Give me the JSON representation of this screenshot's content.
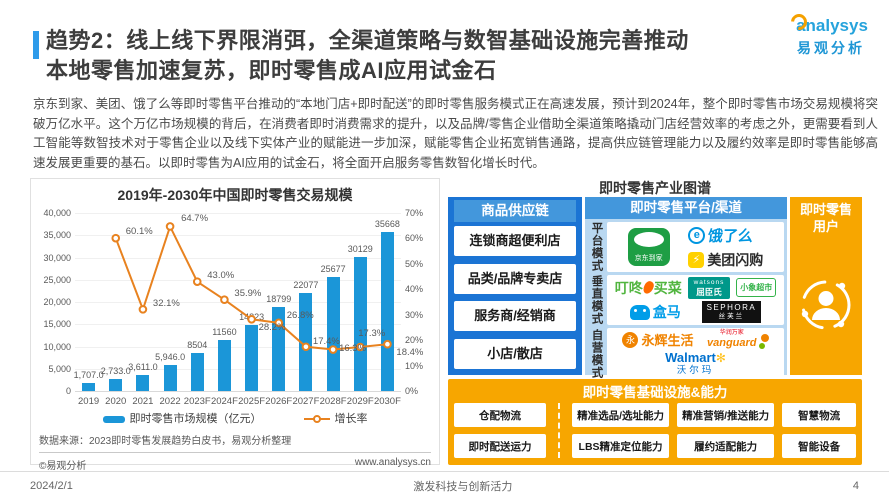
{
  "header": {
    "title_line1": "趋势2：线上线下界限消弭，全渠道策略与数智基础设施完善推动",
    "title_line2": "本地零售加速复苏，即时零售成AI应用试金石",
    "logo_text": "analysys",
    "logo_subtext": "易观分析"
  },
  "intro": "京东到家、美团、饿了么等即时零售平台推动的“本地门店+即时配送”的即时零售服务模式正在高速发展，预计到2024年，整个即时零售市场交易规模将突破万亿水平。这个万亿市场规模的背后，在消费者即时消费需求的提升，以及品牌/零售企业借助全渠道策略撬动门店经营效率的考虑之外，更需要看到人工智能等数智技术对于零售企业以及线下实体产业的赋能进一步加深，赋能零售企业拓宽销售通路，提高供应链管理能力以及履约效率是即时零售能够高速发展更重要的基石。以即时零售为AI应用的试金石，将全面开启服务零售数智化增长时代。",
  "chart_data": {
    "type": "bar+line",
    "title": "2019年-2030年中国即时零售交易规模",
    "categories": [
      "2019",
      "2020",
      "2021",
      "2022",
      "2023F",
      "2024F",
      "2025F",
      "2026F",
      "2027F",
      "2028F",
      "2029F",
      "2030F"
    ],
    "series": [
      {
        "name": "即时零售市场规模（亿元）",
        "type": "bar",
        "color": "#1B96D8",
        "values": [
          1707,
          2733,
          3611,
          5946,
          8504,
          11560,
          14823,
          18799,
          22077,
          25677,
          30129,
          35668
        ],
        "labels": [
          "1,707.0",
          "2,733.0",
          "3,611.0",
          "5,946.0",
          "8504",
          "11560",
          "14823",
          "18799",
          "22077",
          "25677",
          "30129",
          "35668"
        ]
      },
      {
        "name": "增长率",
        "type": "line",
        "color": "#E8821F",
        "values": [
          null,
          60.1,
          32.1,
          64.7,
          43.0,
          35.9,
          28.2,
          26.8,
          17.4,
          16.3,
          17.3,
          18.4
        ],
        "labels": [
          "",
          "60.1%",
          "32.1%",
          "64.7%",
          "43.0%",
          "35.9%",
          "28.2%",
          "26.8%",
          "17.4%",
          "16.3%",
          "17.3%",
          "18.4%"
        ]
      }
    ],
    "left_axis": {
      "ticks": [
        "0",
        "5,000",
        "10,000",
        "15,000",
        "20,000",
        "25,000",
        "30,000",
        "35,000",
        "40,000"
      ],
      "max": 40000
    },
    "right_axis": {
      "ticks": [
        "0%",
        "10%",
        "20%",
        "30%",
        "40%",
        "50%",
        "60%",
        "70%"
      ],
      "max": 70
    },
    "grid": true,
    "legend_position": "bottom",
    "source": "数据来源：2023即时零售发展趋势白皮书，易观分析整理",
    "copyright": "©易观分析",
    "website": "www.analysys.cn"
  },
  "diagram": {
    "title": "即时零售产业图谱",
    "supply_chain": {
      "header": "商品供应链",
      "items": [
        "连锁商超便利店",
        "品类/品牌专卖店",
        "服务商/经销商",
        "小店/散店"
      ]
    },
    "platforms": {
      "header": "即时零售平台/渠道",
      "modes": [
        "平台模式",
        "垂直模式",
        "自营模式"
      ],
      "logos": {
        "jd_daojia": "京东到家",
        "eleme_mark": "e",
        "eleme": "饿了么",
        "meituan_mark": "⚡",
        "meituan_shangou": "美团闪购",
        "dingdong_left": "叮咚",
        "dingdong_right": "买菜",
        "watsons_en": "watsons",
        "watsons_cn": "屈臣氏",
        "xiaoxiang": "小象超市",
        "hema": "盒马",
        "sephora_en": "SEPHORA",
        "sephora_cn": "丝芙兰",
        "yonghui_mark": "永",
        "yonghui": "永辉生活",
        "vanguard_cn": "华润万家",
        "vanguard_en": "vanguard",
        "walmart_en": "Walmart",
        "walmart_spark": "✻",
        "walmart_cn": "沃尔玛"
      }
    },
    "users": {
      "header_line1": "即时零售",
      "header_line2": "用户"
    },
    "infrastructure": {
      "header": "即时零售基础设施&能力",
      "items_row1": [
        "仓配物流",
        "精准选品/选址能力",
        "精准营销/推送能力",
        "智慧物流"
      ],
      "items_row2": [
        "即时配送运力",
        "LBS精准定位能力",
        "履约适配能力",
        "智能设备"
      ]
    }
  },
  "footer": {
    "date": "2024/2/1",
    "center": "激发科技与创新活力",
    "page": "4"
  }
}
